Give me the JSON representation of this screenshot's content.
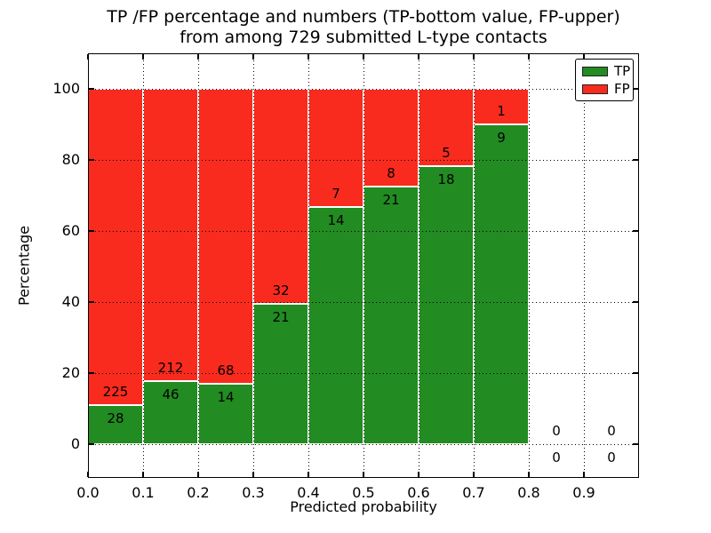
{
  "title": {
    "line1": "TP /FP percentage and numbers (TP-bottom value, FP-upper)",
    "line2": "from among 729 submitted L-type contacts"
  },
  "chart_data": {
    "type": "bar",
    "stacked": true,
    "unit": "percent",
    "title": "TP /FP percentage and numbers (TP-bottom value, FP-upper) from among 729 submitted L-type contacts",
    "xlabel": "Predicted probability",
    "ylabel": "Percentage",
    "total_contacts": 729,
    "bin_starts": [
      0.0,
      0.1,
      0.2,
      0.3,
      0.4,
      0.5,
      0.6,
      0.7,
      0.8,
      0.9
    ],
    "bin_width": 0.1,
    "x_tick_labels": [
      "0.0",
      "0.1",
      "0.2",
      "0.3",
      "0.4",
      "0.5",
      "0.6",
      "0.7",
      "0.8",
      "0.9"
    ],
    "y_ticks": [
      0,
      20,
      40,
      60,
      80,
      100
    ],
    "xlim": [
      0.0,
      1.0
    ],
    "ylim": [
      -9.5,
      110
    ],
    "grid": "dotted",
    "grid_color": "#000000",
    "series": [
      {
        "name": "TP",
        "color": "#228b22",
        "counts": [
          28,
          46,
          14,
          21,
          14,
          21,
          18,
          9,
          0,
          0
        ],
        "percent": [
          11.1,
          17.8,
          17.1,
          39.6,
          66.7,
          72.4,
          78.3,
          90.0,
          0,
          0
        ]
      },
      {
        "name": "FP",
        "color": "#f82b1e",
        "counts": [
          225,
          212,
          68,
          32,
          7,
          8,
          5,
          1,
          0,
          0
        ],
        "percent": [
          88.9,
          82.2,
          82.9,
          60.4,
          33.3,
          27.6,
          21.7,
          10.0,
          0,
          0
        ]
      }
    ],
    "legend": {
      "position": "upper-right",
      "entries": [
        {
          "label": "TP",
          "color": "#228b22"
        },
        {
          "label": "FP",
          "color": "#f82b1e"
        }
      ]
    }
  }
}
